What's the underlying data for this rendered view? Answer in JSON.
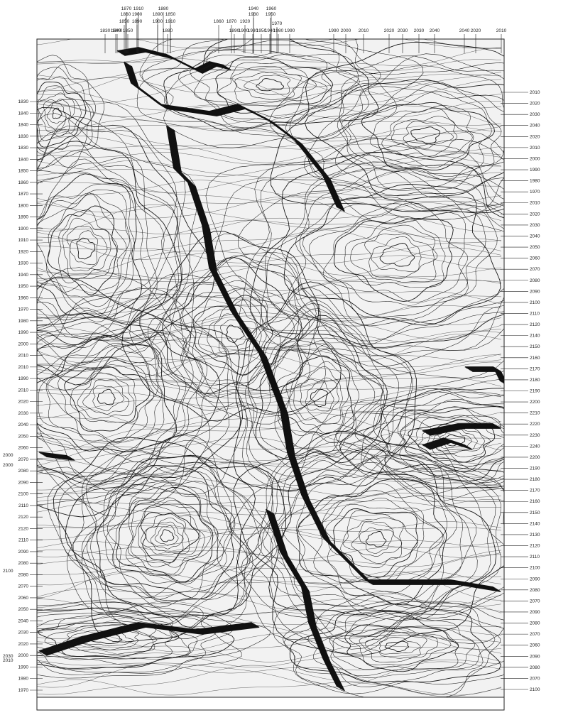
{
  "map": {
    "colors": {
      "paper": "#ffffff",
      "land": "#f2f2f2",
      "contour": "#1a1a1a",
      "ravine": "#111111",
      "frame": "#222222"
    },
    "top_labels": [
      "1870",
      "1910",
      "1880",
      "1940",
      "1960",
      "1860",
      "1900",
      "1890",
      "1850",
      "1930",
      "1950",
      "1830",
      "1840",
      "1850",
      "1890",
      "1900",
      "1910",
      "1860",
      "1870",
      "1840",
      "1850",
      "1880",
      "1890",
      "1900",
      "1920",
      "1930",
      "1950",
      "1940",
      "1980",
      "1990",
      "1990",
      "2000",
      "2010",
      "2020",
      "2030",
      "2030",
      "2040",
      "2040",
      "2020",
      "2010",
      "1970"
    ],
    "left_labels": [
      "1830",
      "1840",
      "1840",
      "1830",
      "1830",
      "1840",
      "1850",
      "1860",
      "1870",
      "1800",
      "1890",
      "1900",
      "1910",
      "1920",
      "1930",
      "1940",
      "1950",
      "1960",
      "1970",
      "1980",
      "1990",
      "2000",
      "2010",
      "2010",
      "1990",
      "2010",
      "2020",
      "2030",
      "2040",
      "2050",
      "2060",
      "2070",
      "2080",
      "2090",
      "2100",
      "2110",
      "2120",
      "2120",
      "2110",
      "2090",
      "2080",
      "2080",
      "2070",
      "2060",
      "2050",
      "2040",
      "2030",
      "2020",
      "2000",
      "1990",
      "1980",
      "1970"
    ],
    "left_edge_labels": [
      "2000",
      "2000",
      "2100",
      "2030",
      "2010"
    ],
    "right_labels": [
      "2010",
      "2020",
      "2030",
      "2040",
      "2020",
      "2010",
      "2000",
      "1990",
      "1980",
      "1970",
      "2010",
      "2020",
      "2030",
      "2040",
      "2050",
      "2060",
      "2070",
      "2080",
      "2090",
      "2100",
      "2110",
      "2120",
      "2140",
      "2150",
      "2160",
      "2170",
      "2180",
      "2190",
      "2200",
      "2210",
      "2220",
      "2230",
      "2240",
      "2200",
      "2190",
      "2180",
      "2170",
      "2160",
      "2150",
      "2140",
      "2130",
      "2120",
      "2110",
      "2100",
      "2090",
      "2080",
      "2070",
      "2090",
      "2080",
      "2070",
      "2060",
      "2090",
      "2080",
      "2070",
      "2100"
    ]
  }
}
